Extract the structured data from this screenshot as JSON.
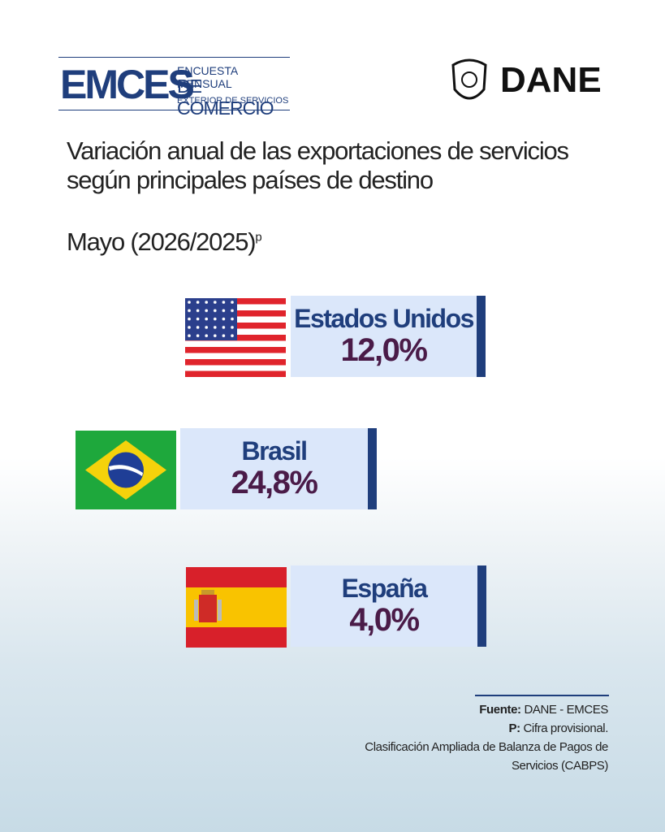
{
  "header": {
    "logo_left": {
      "acronym": "EMCES",
      "line1": "ENCUESTA MENSUAL",
      "line2": "DE COMERCIO",
      "line3": "EXTERIOR DE SERVICIOS"
    },
    "logo_right": "DANE"
  },
  "title": [
    "Variación anual de las exportaciones de servicios",
    "según principales países de destino"
  ],
  "period": "Mayo (2026/2025)",
  "period_mark": "p",
  "countries": [
    {
      "name": "Estados Unidos",
      "value": "12,0%"
    },
    {
      "name": "Brasil",
      "value": "24,8%"
    },
    {
      "name": "España",
      "value": "4,0%"
    }
  ],
  "footer": {
    "source_label": "Fuente:",
    "source": "DANE - EMCES",
    "note_label": "P:",
    "note": "Cifra provisional.",
    "classification": [
      "Clasificación Ampliada de Balanza de Pagos de",
      "Servicios (CABPS)"
    ]
  }
}
